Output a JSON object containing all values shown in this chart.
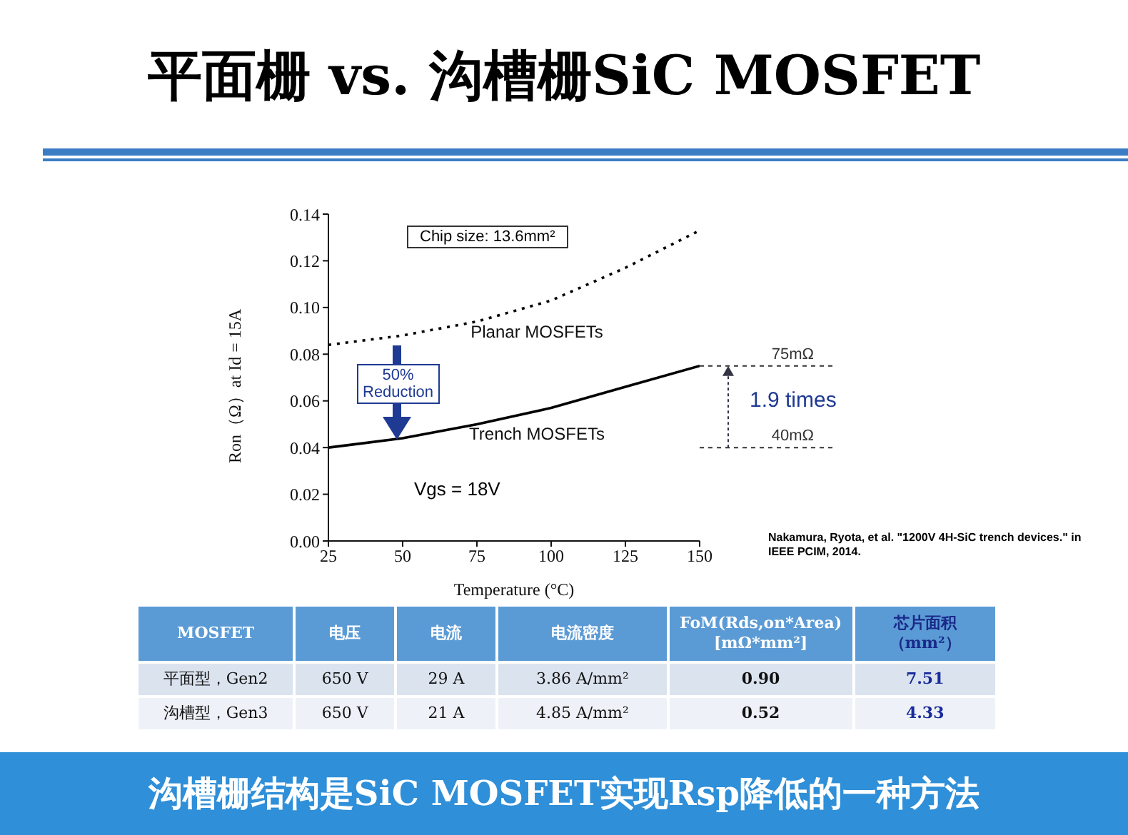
{
  "chart_data": [
    {
      "type": "line",
      "title": "平面栅 vs. 沟槽栅SiC MOSFET",
      "xlabel": "Temperature (°C)",
      "ylabel": "Ron（Ω）at Id = 15A",
      "x": [
        25,
        50,
        75,
        100,
        125,
        150
      ],
      "series": [
        {
          "name": "Planar MOSFETs",
          "color": "#000000",
          "line_style": "dotted",
          "values": [
            0.084,
            0.088,
            0.094,
            0.103,
            0.117,
            0.133
          ]
        },
        {
          "name": "Trench MOSFETs",
          "color": "#000000",
          "line_style": "solid",
          "values": [
            0.04,
            0.044,
            0.05,
            0.057,
            0.066,
            0.075
          ]
        }
      ],
      "xlim": [
        25,
        150
      ],
      "xticks": [
        25,
        50,
        75,
        100,
        125,
        150
      ],
      "ylim": [
        0,
        0.14
      ],
      "yticks": [
        {
          "value": 0,
          "label": "0.00"
        },
        {
          "value": 0.02,
          "label": "0.02"
        },
        {
          "value": 0.04,
          "label": "0.04"
        },
        {
          "value": 0.06,
          "label": "0.06"
        },
        {
          "value": 0.08,
          "label": "0.08"
        },
        {
          "value": 0.1,
          "label": "0.10"
        },
        {
          "value": 0.12,
          "label": "0.12"
        },
        {
          "value": 0.14,
          "label": "0.14"
        }
      ],
      "marker": "none",
      "annotations": [
        "75mΩ",
        "40mΩ",
        "Chip size: 13.6mm²",
        "50%\nReduction",
        "Vgs = 18V",
        "1.9 times",
        "Nakamura, Ryota, et al. \"1200V 4H-SiC trench devices.\" in IEEE PCIM, 2014.",
        "沟槽栅结构是SiC MOSFET实现Rsp降低的一种方法"
      ]
    },
    {
      "type": "other",
      "annotations": [
        "MOSFET",
        "电压",
        "电流",
        "电流密度",
        "FoM(Rds,on*Area) [mΩ*mm²]",
        "芯片面积（mm²）",
        "平面型，Gen2",
        "650 V",
        "29 A",
        "3.86 A/mm²",
        "0.90",
        "7.51",
        "沟槽型，Gen3",
        "650 V",
        "21 A",
        "4.85 A/mm²",
        "0.52",
        "4.33"
      ]
    }
  ]
}
